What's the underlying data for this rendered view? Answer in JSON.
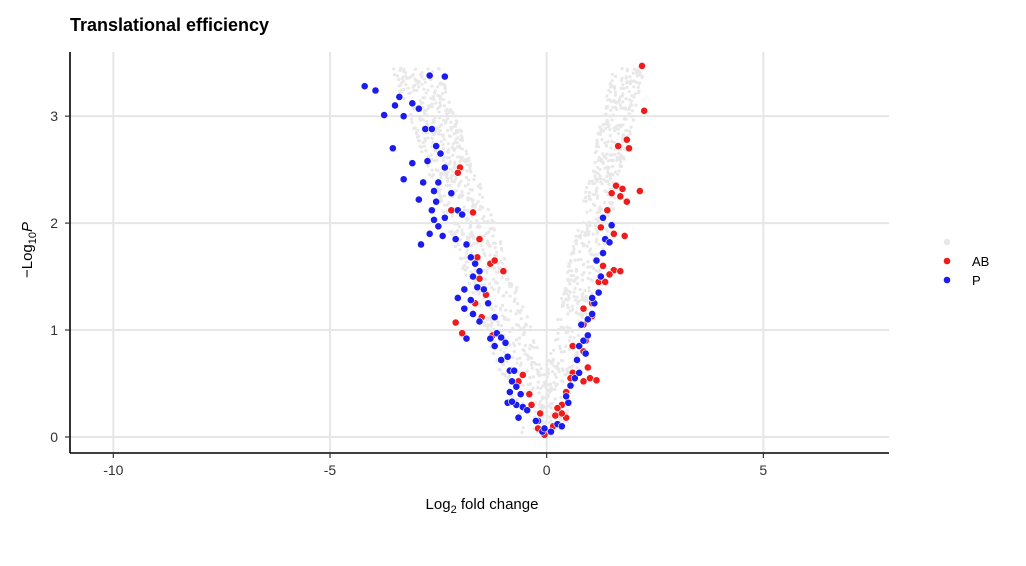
{
  "chart_data": {
    "type": "scatter",
    "title": "Translational efficiency",
    "xlabel": {
      "main": "Log",
      "sub": "2",
      "rest": " fold change"
    },
    "ylabel": {
      "prefix": "−Log",
      "sub": "10",
      "var": "P"
    },
    "xlim": [
      -11,
      7.9
    ],
    "ylim": [
      -0.15,
      3.6
    ],
    "xticks": [
      -10,
      -5,
      0,
      5
    ],
    "xtick_labels": [
      "-10",
      "-5",
      "0",
      "5"
    ],
    "yticks": [
      0,
      1,
      2,
      3
    ],
    "ytick_labels": [
      "0",
      "1",
      "2",
      "3"
    ],
    "grid": true,
    "legend": {
      "position": "right",
      "entries": [
        "",
        "AB",
        "P"
      ]
    },
    "colors": {
      "background_points": "#e8e8e8",
      "AB": "#ee1c1c",
      "P": "#1c1cee"
    },
    "series": [
      {
        "name": "AB",
        "color": "#ee1c1c",
        "points": [
          [
            2.2,
            3.47
          ],
          [
            2.25,
            3.05
          ],
          [
            2.15,
            2.3
          ],
          [
            1.65,
            2.72
          ],
          [
            1.85,
            2.78
          ],
          [
            1.9,
            2.7
          ],
          [
            1.6,
            2.35
          ],
          [
            1.75,
            2.32
          ],
          [
            1.7,
            2.25
          ],
          [
            1.85,
            2.2
          ],
          [
            1.5,
            2.28
          ],
          [
            1.25,
            1.96
          ],
          [
            1.4,
            2.12
          ],
          [
            1.55,
            1.9
          ],
          [
            1.8,
            1.88
          ],
          [
            1.55,
            1.56
          ],
          [
            1.7,
            1.55
          ],
          [
            1.3,
            1.6
          ],
          [
            1.45,
            1.52
          ],
          [
            1.2,
            1.45
          ],
          [
            1.35,
            1.45
          ],
          [
            1.05,
            1.25
          ],
          [
            0.85,
            1.05
          ],
          [
            1.05,
            1.13
          ],
          [
            0.85,
            1.2
          ],
          [
            0.9,
            0.9
          ],
          [
            0.6,
            0.85
          ],
          [
            0.85,
            0.8
          ],
          [
            0.95,
            0.65
          ],
          [
            1.0,
            0.55
          ],
          [
            1.15,
            0.53
          ],
          [
            0.85,
            0.52
          ],
          [
            0.6,
            0.6
          ],
          [
            0.55,
            0.55
          ],
          [
            0.45,
            0.42
          ],
          [
            0.35,
            0.3
          ],
          [
            0.45,
            0.18
          ],
          [
            0.35,
            0.22
          ],
          [
            0.2,
            0.2
          ],
          [
            0.15,
            0.1
          ],
          [
            0.05,
            0.05
          ],
          [
            -0.05,
            0.02
          ],
          [
            -0.2,
            0.08
          ],
          [
            -0.15,
            0.22
          ],
          [
            -0.4,
            0.4
          ],
          [
            -0.55,
            0.58
          ],
          [
            -0.65,
            0.52
          ],
          [
            -1.25,
            0.95
          ],
          [
            -1.4,
            1.33
          ],
          [
            -1.55,
            1.48
          ],
          [
            -1.3,
            1.62
          ],
          [
            -1.2,
            1.65
          ],
          [
            -1.0,
            1.55
          ],
          [
            -2.1,
            1.07
          ],
          [
            -1.95,
            0.97
          ],
          [
            -1.65,
            1.25
          ],
          [
            -1.5,
            1.12
          ],
          [
            -2.0,
            2.52
          ],
          [
            -2.05,
            2.47
          ],
          [
            -2.2,
            2.12
          ],
          [
            -1.7,
            2.1
          ],
          [
            -1.55,
            1.85
          ],
          [
            -1.6,
            1.68
          ],
          [
            -0.35,
            0.3
          ],
          [
            0.25,
            0.27
          ]
        ]
      },
      {
        "name": "P",
        "color": "#1c1cee",
        "points": [
          [
            -4.2,
            3.28
          ],
          [
            -3.95,
            3.24
          ],
          [
            -3.75,
            3.01
          ],
          [
            -3.4,
            3.18
          ],
          [
            -3.5,
            3.1
          ],
          [
            -3.1,
            3.12
          ],
          [
            -2.95,
            3.07
          ],
          [
            -2.7,
            3.38
          ],
          [
            -2.35,
            3.37
          ],
          [
            -3.3,
            3.0
          ],
          [
            -3.55,
            2.7
          ],
          [
            -3.1,
            2.56
          ],
          [
            -2.8,
            2.88
          ],
          [
            -2.65,
            2.88
          ],
          [
            -2.55,
            2.72
          ],
          [
            -2.45,
            2.65
          ],
          [
            -2.75,
            2.58
          ],
          [
            -2.35,
            2.52
          ],
          [
            -3.3,
            2.41
          ],
          [
            -2.85,
            2.38
          ],
          [
            -2.5,
            2.38
          ],
          [
            -2.6,
            2.3
          ],
          [
            -2.2,
            2.28
          ],
          [
            -2.95,
            2.22
          ],
          [
            -2.55,
            2.2
          ],
          [
            -2.65,
            2.12
          ],
          [
            -2.35,
            2.05
          ],
          [
            -2.05,
            2.12
          ],
          [
            -1.95,
            2.08
          ],
          [
            -2.6,
            2.03
          ],
          [
            -2.5,
            1.97
          ],
          [
            -2.7,
            1.9
          ],
          [
            -2.9,
            1.8
          ],
          [
            -2.4,
            1.88
          ],
          [
            -2.1,
            1.85
          ],
          [
            -1.85,
            1.8
          ],
          [
            -1.75,
            1.68
          ],
          [
            -1.65,
            1.62
          ],
          [
            -1.55,
            1.55
          ],
          [
            -1.7,
            1.5
          ],
          [
            -1.9,
            1.38
          ],
          [
            -1.75,
            1.28
          ],
          [
            -1.6,
            1.4
          ],
          [
            -1.45,
            1.38
          ],
          [
            -2.05,
            1.3
          ],
          [
            -1.9,
            1.2
          ],
          [
            -1.7,
            1.15
          ],
          [
            -1.55,
            1.08
          ],
          [
            -1.35,
            1.25
          ],
          [
            -1.2,
            1.12
          ],
          [
            -1.15,
            0.97
          ],
          [
            -1.3,
            0.92
          ],
          [
            -1.05,
            0.93
          ],
          [
            -0.95,
            0.88
          ],
          [
            -1.2,
            0.85
          ],
          [
            -0.9,
            0.75
          ],
          [
            -1.05,
            0.72
          ],
          [
            -0.85,
            0.62
          ],
          [
            -0.75,
            0.62
          ],
          [
            -0.8,
            0.52
          ],
          [
            -0.7,
            0.47
          ],
          [
            -0.85,
            0.42
          ],
          [
            -0.6,
            0.4
          ],
          [
            -0.9,
            0.32
          ],
          [
            -0.7,
            0.3
          ],
          [
            -0.55,
            0.28
          ],
          [
            -0.45,
            0.25
          ],
          [
            -0.8,
            0.33
          ],
          [
            -0.2,
            0.15
          ],
          [
            -0.1,
            0.05
          ],
          [
            -0.05,
            0.08
          ],
          [
            0.1,
            0.05
          ],
          [
            0.25,
            0.12
          ],
          [
            0.35,
            0.1
          ],
          [
            0.5,
            0.32
          ],
          [
            0.45,
            0.38
          ],
          [
            0.55,
            0.48
          ],
          [
            0.65,
            0.55
          ],
          [
            0.75,
            0.6
          ],
          [
            0.7,
            0.72
          ],
          [
            0.9,
            0.78
          ],
          [
            0.75,
            0.85
          ],
          [
            0.85,
            0.9
          ],
          [
            0.95,
            0.95
          ],
          [
            0.8,
            1.05
          ],
          [
            0.95,
            1.1
          ],
          [
            1.05,
            1.15
          ],
          [
            1.1,
            1.25
          ],
          [
            1.05,
            1.3
          ],
          [
            1.2,
            1.35
          ],
          [
            1.25,
            1.5
          ],
          [
            1.15,
            1.65
          ],
          [
            1.3,
            1.72
          ],
          [
            1.35,
            1.85
          ],
          [
            1.5,
            1.98
          ],
          [
            1.3,
            2.05
          ],
          [
            1.45,
            1.82
          ],
          [
            -1.85,
            0.92
          ],
          [
            -0.65,
            0.18
          ],
          [
            -0.25,
            0.15
          ]
        ]
      }
    ]
  }
}
